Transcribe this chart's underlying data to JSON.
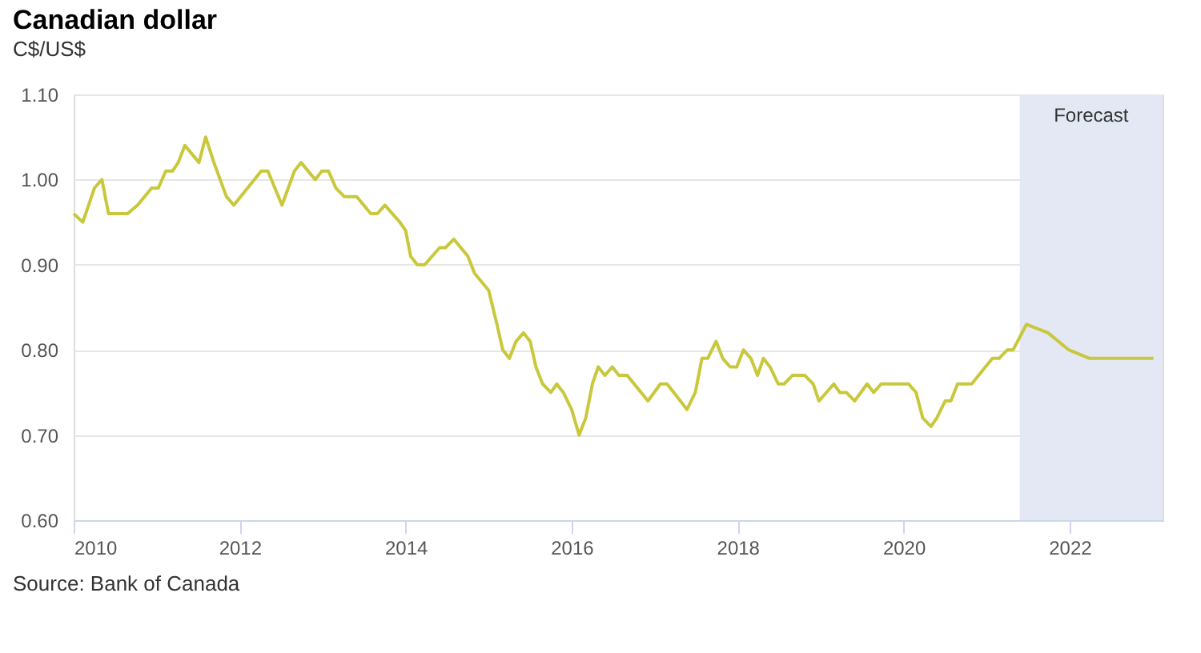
{
  "chart_data": {
    "type": "line",
    "title": "Canadian dollar",
    "subtitle": "C$/US$",
    "x": [
      2010.0,
      2010.11,
      2010.25,
      2010.34,
      2010.42,
      2010.65,
      2010.77,
      2010.94,
      2011.02,
      2011.11,
      2011.19,
      2011.26,
      2011.34,
      2011.51,
      2011.59,
      2011.69,
      2011.84,
      2011.93,
      2012.26,
      2012.34,
      2012.51,
      2012.66,
      2012.74,
      2012.91,
      2012.99,
      2013.07,
      2013.16,
      2013.26,
      2013.41,
      2013.58,
      2013.66,
      2013.75,
      2013.93,
      2014.0,
      2014.06,
      2014.14,
      2014.23,
      2014.41,
      2014.48,
      2014.58,
      2014.75,
      2014.83,
      2015.0,
      2015.1,
      2015.17,
      2015.25,
      2015.33,
      2015.42,
      2015.5,
      2015.57,
      2015.65,
      2015.75,
      2015.82,
      2015.9,
      2016.0,
      2016.09,
      2016.17,
      2016.25,
      2016.32,
      2016.4,
      2016.49,
      2016.57,
      2016.67,
      2016.92,
      2017.07,
      2017.15,
      2017.39,
      2017.49,
      2017.57,
      2017.64,
      2017.74,
      2017.82,
      2017.91,
      2017.99,
      2018.07,
      2018.16,
      2018.24,
      2018.31,
      2018.39,
      2018.49,
      2018.56,
      2018.66,
      2018.81,
      2018.91,
      2018.98,
      2019.16,
      2019.23,
      2019.31,
      2019.41,
      2019.56,
      2019.64,
      2019.73,
      2020.06,
      2020.15,
      2020.23,
      2020.33,
      2020.4,
      2020.5,
      2020.57,
      2020.65,
      2020.82,
      2021.07,
      2021.15,
      2021.25,
      2021.32,
      2021.48,
      2021.74,
      2021.99,
      2022.24,
      2023.01
    ],
    "series": [
      {
        "color": "#c9c83c",
        "values": [
          0.96,
          0.95,
          0.99,
          1.0,
          0.96,
          0.96,
          0.97,
          0.99,
          0.99,
          1.01,
          1.01,
          1.02,
          1.04,
          1.02,
          1.05,
          1.02,
          0.98,
          0.97,
          1.01,
          1.01,
          0.97,
          1.01,
          1.02,
          1.0,
          1.01,
          1.01,
          0.99,
          0.98,
          0.98,
          0.96,
          0.96,
          0.97,
          0.95,
          0.94,
          0.91,
          0.9,
          0.9,
          0.92,
          0.92,
          0.93,
          0.91,
          0.89,
          0.87,
          0.83,
          0.8,
          0.79,
          0.81,
          0.82,
          0.81,
          0.78,
          0.76,
          0.75,
          0.76,
          0.75,
          0.73,
          0.7,
          0.72,
          0.76,
          0.78,
          0.77,
          0.78,
          0.77,
          0.77,
          0.74,
          0.76,
          0.76,
          0.73,
          0.75,
          0.79,
          0.79,
          0.81,
          0.79,
          0.78,
          0.78,
          0.8,
          0.79,
          0.77,
          0.79,
          0.78,
          0.76,
          0.76,
          0.77,
          0.77,
          0.76,
          0.74,
          0.76,
          0.75,
          0.75,
          0.74,
          0.76,
          0.75,
          0.76,
          0.76,
          0.75,
          0.72,
          0.71,
          0.72,
          0.74,
          0.74,
          0.76,
          0.76,
          0.79,
          0.79,
          0.8,
          0.8,
          0.83,
          0.82,
          0.8,
          0.79,
          0.79
        ]
      }
    ],
    "xlim": [
      2010,
      2023.12
    ],
    "xticks": [
      2010,
      2012,
      2014,
      2016,
      2018,
      2020,
      2022
    ],
    "ylim": [
      0.6,
      1.1
    ],
    "yticks": [
      {
        "value": 0.6,
        "label": "0.60"
      },
      {
        "value": 0.7,
        "label": "0.70"
      },
      {
        "value": 0.8,
        "label": "0.80"
      },
      {
        "value": 0.9,
        "label": "0.90"
      },
      {
        "value": 1.0,
        "label": "1.00"
      },
      {
        "value": 1.1,
        "label": "1.10"
      }
    ],
    "bands": [
      {
        "axis": "x",
        "from": 2021.4,
        "to": 2023.12,
        "label": "Forecast",
        "color": "#e4e8f4"
      }
    ],
    "grid": "y",
    "legend": false,
    "marker": "none",
    "line_style": "solid",
    "annotations": [
      "Source: Bank of Canada"
    ]
  }
}
